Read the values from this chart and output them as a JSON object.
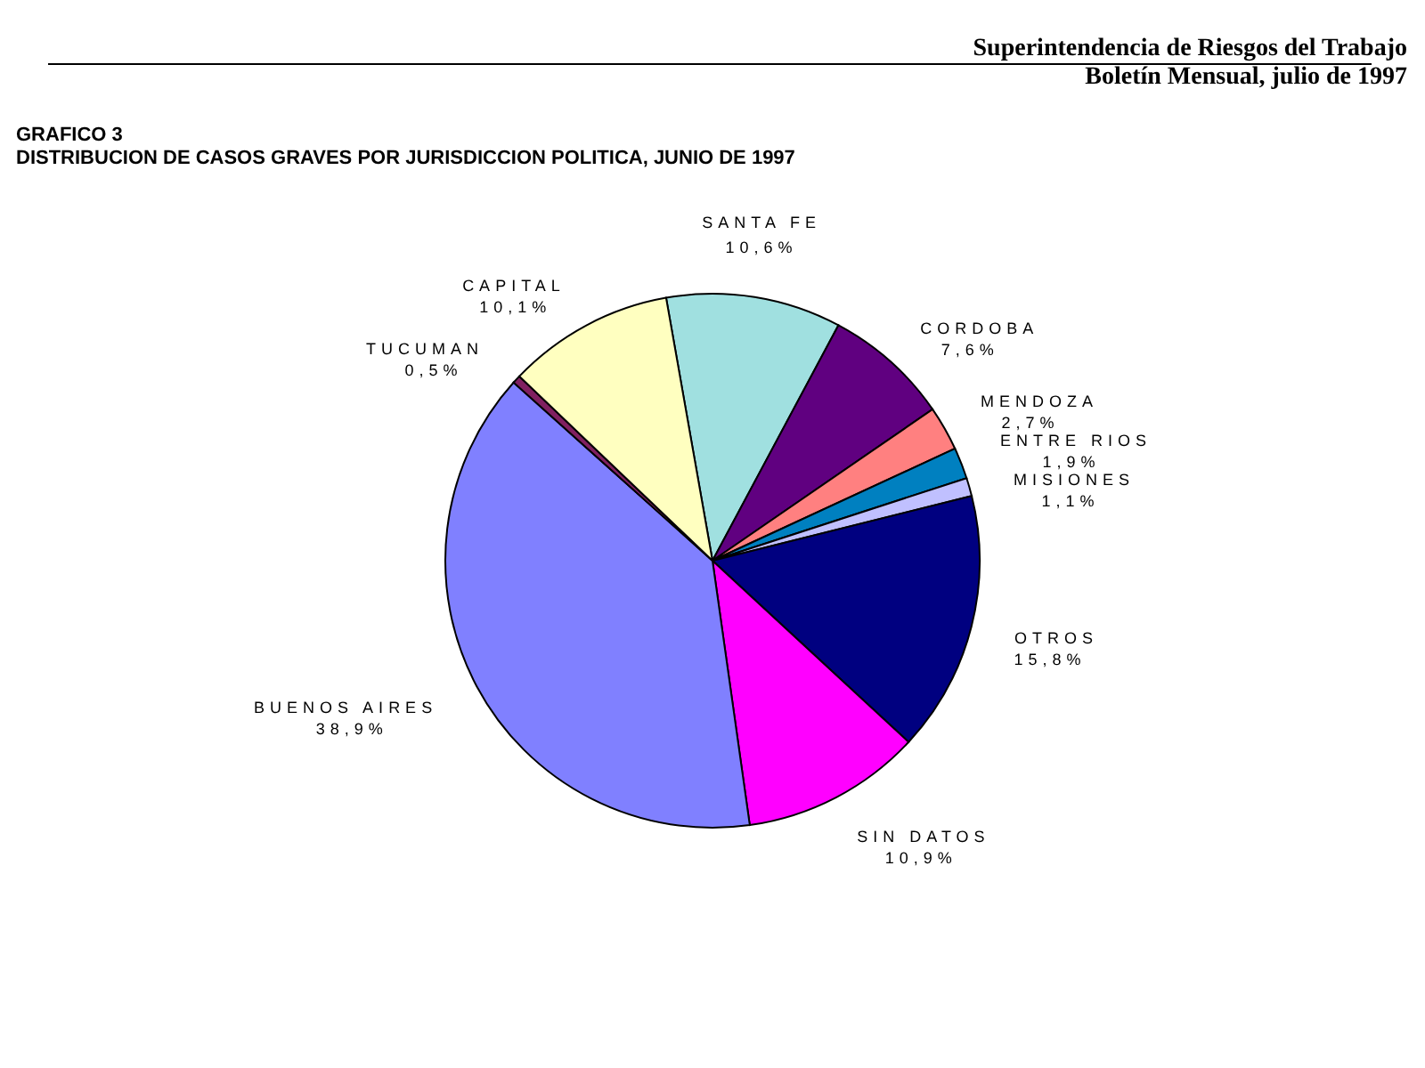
{
  "chart_data": {
    "type": "pie",
    "title": "GRAFICO 3",
    "subtitle": "DISTRIBUCION DE CASOS GRAVES POR JURISDICCION POLITICA, JUNIO DE 1997",
    "annotations": [
      "Superintendencia de Riesgos del Trabajo",
      "Boletín Mensual, julio de 1997"
    ],
    "categories": [
      "SANTA FE",
      "CORDOBA",
      "MENDOZA",
      "ENTRE RIOS",
      "MISIONES",
      "OTROS",
      "SIN DATOS",
      "BUENOS AIRES",
      "TUCUMAN",
      "CAPITAL"
    ],
    "values": [
      10.6,
      7.6,
      2.7,
      1.9,
      1.1,
      15.8,
      10.9,
      38.9,
      0.5,
      10.1
    ],
    "colors": [
      "#a0e0e0",
      "#600080",
      "#ff8080",
      "#0080c0",
      "#c0c0ff",
      "#000080",
      "#ff00ff",
      "#8080ff",
      "#802060",
      "#ffffc0"
    ],
    "value_labels": [
      "10,6%",
      "7,6%",
      "2,7%",
      "1,9%",
      "1,1%",
      "15,8%",
      "10,9%",
      "38,9%",
      "0,5%",
      "10,1%"
    ]
  }
}
